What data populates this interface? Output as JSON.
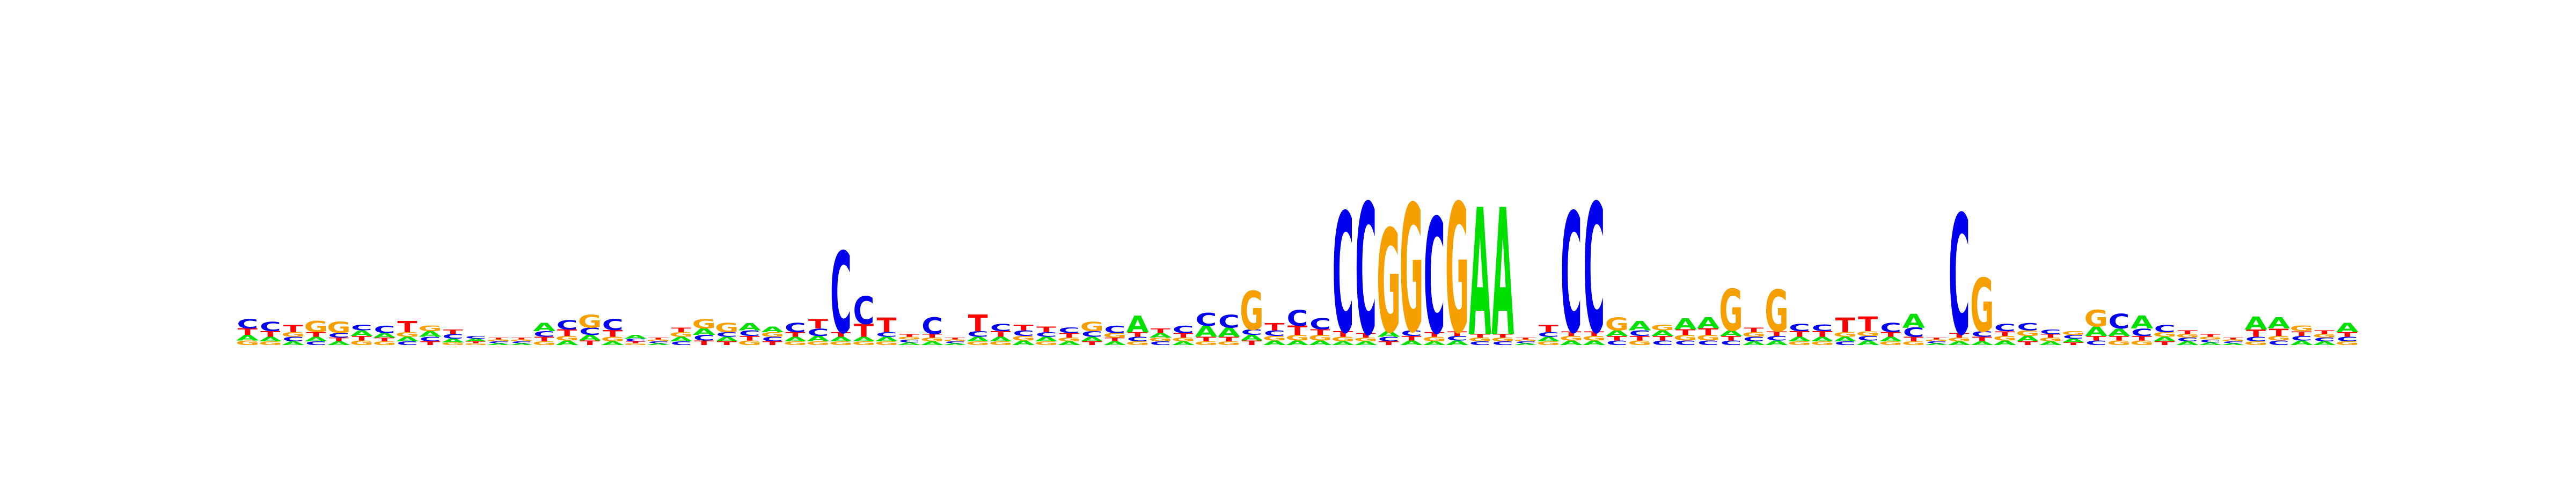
{
  "chart_data": {
    "type": "sequence-logo",
    "alphabet": [
      "A",
      "C",
      "G",
      "T"
    ],
    "colors": {
      "A": "#00e000",
      "C": "#0000ee",
      "G": "#f5a000",
      "T": "#ff0000"
    },
    "ylim": [
      0,
      2
    ],
    "columns": [
      {
        "A": 0.06,
        "C": 0.1,
        "G": 0.05,
        "T": 0.07
      },
      {
        "A": 0.05,
        "C": 0.1,
        "G": 0.04,
        "T": 0.06
      },
      {
        "A": 0.04,
        "C": 0.05,
        "G": 0.05,
        "T": 0.08
      },
      {
        "A": 0.05,
        "C": 0.04,
        "G": 0.12,
        "T": 0.05
      },
      {
        "A": 0.04,
        "C": 0.05,
        "G": 0.12,
        "T": 0.04
      },
      {
        "A": 0.06,
        "C": 0.06,
        "G": 0.05,
        "T": 0.05
      },
      {
        "A": 0.05,
        "C": 0.08,
        "G": 0.04,
        "T": 0.04
      },
      {
        "A": 0.05,
        "C": 0.04,
        "G": 0.05,
        "T": 0.12
      },
      {
        "A": 0.06,
        "C": 0.05,
        "G": 0.06,
        "T": 0.04
      },
      {
        "A": 0.04,
        "C": 0.05,
        "G": 0.03,
        "T": 0.05
      },
      {
        "A": 0.03,
        "C": 0.03,
        "G": 0.02,
        "T": 0.02
      },
      {
        "A": 0.02,
        "C": 0.02,
        "G": 0.02,
        "T": 0.02
      },
      {
        "A": 0.02,
        "C": 0.02,
        "G": 0.02,
        "T": 0.02
      },
      {
        "A": 0.09,
        "C": 0.06,
        "G": 0.04,
        "T": 0.05
      },
      {
        "A": 0.05,
        "C": 0.1,
        "G": 0.05,
        "T": 0.07
      },
      {
        "A": 0.06,
        "C": 0.08,
        "G": 0.14,
        "T": 0.05
      },
      {
        "A": 0.04,
        "C": 0.12,
        "G": 0.05,
        "T": 0.07
      },
      {
        "A": 0.04,
        "C": 0.03,
        "G": 0.02,
        "T": 0.02
      },
      {
        "A": 0.02,
        "C": 0.02,
        "G": 0.02,
        "T": 0.02
      },
      {
        "A": 0.05,
        "C": 0.04,
        "G": 0.05,
        "T": 0.05
      },
      {
        "A": 0.07,
        "C": 0.06,
        "G": 0.1,
        "T": 0.05
      },
      {
        "A": 0.05,
        "C": 0.05,
        "G": 0.1,
        "T": 0.04
      },
      {
        "A": 0.08,
        "C": 0.06,
        "G": 0.05,
        "T": 0.05
      },
      {
        "A": 0.06,
        "C": 0.05,
        "G": 0.05,
        "T": 0.04
      },
      {
        "A": 0.05,
        "C": 0.1,
        "G": 0.04,
        "T": 0.05
      },
      {
        "A": 0.06,
        "C": 0.08,
        "G": 0.04,
        "T": 0.1
      },
      {
        "A": 0.05,
        "C": 0.88,
        "G": 0.04,
        "T": 0.05
      },
      {
        "A": 0.05,
        "C": 0.3,
        "G": 0.04,
        "T": 0.14
      },
      {
        "A": 0.05,
        "C": 0.05,
        "G": 0.04,
        "T": 0.16
      },
      {
        "A": 0.03,
        "C": 0.03,
        "G": 0.03,
        "T": 0.03
      },
      {
        "A": 0.04,
        "C": 0.18,
        "G": 0.04,
        "T": 0.04
      },
      {
        "A": 0.02,
        "C": 0.02,
        "G": 0.02,
        "T": 0.02
      },
      {
        "A": 0.05,
        "C": 0.06,
        "G": 0.04,
        "T": 0.18
      },
      {
        "A": 0.05,
        "C": 0.08,
        "G": 0.04,
        "T": 0.06
      },
      {
        "A": 0.05,
        "C": 0.06,
        "G": 0.05,
        "T": 0.06
      },
      {
        "A": 0.05,
        "C": 0.05,
        "G": 0.04,
        "T": 0.06
      },
      {
        "A": 0.04,
        "C": 0.06,
        "G": 0.04,
        "T": 0.05
      },
      {
        "A": 0.05,
        "C": 0.06,
        "G": 0.1,
        "T": 0.04
      },
      {
        "A": 0.04,
        "C": 0.08,
        "G": 0.05,
        "T": 0.04
      },
      {
        "A": 0.18,
        "C": 0.05,
        "G": 0.04,
        "T": 0.05
      },
      {
        "A": 0.05,
        "C": 0.04,
        "G": 0.04,
        "T": 0.05
      },
      {
        "A": 0.04,
        "C": 0.08,
        "G": 0.04,
        "T": 0.05
      },
      {
        "A": 0.12,
        "C": 0.14,
        "G": 0.04,
        "T": 0.05
      },
      {
        "A": 0.1,
        "C": 0.14,
        "G": 0.04,
        "T": 0.05
      },
      {
        "A": 0.06,
        "C": 0.06,
        "G": 0.42,
        "T": 0.05
      },
      {
        "A": 0.05,
        "C": 0.06,
        "G": 0.05,
        "T": 0.08
      },
      {
        "A": 0.05,
        "C": 0.17,
        "G": 0.06,
        "T": 0.1
      },
      {
        "A": 0.05,
        "C": 0.12,
        "G": 0.06,
        "T": 0.06
      },
      {
        "A": 0.04,
        "C": 1.3,
        "G": 0.05,
        "T": 0.06
      },
      {
        "A": 0.04,
        "C": 1.42,
        "G": 0.04,
        "T": 0.05
      },
      {
        "A": 0.06,
        "C": 0.05,
        "G": 1.12,
        "T": 0.04
      },
      {
        "A": 0.05,
        "C": 0.06,
        "G": 1.38,
        "T": 0.05
      },
      {
        "A": 0.04,
        "C": 1.25,
        "G": 0.05,
        "T": 0.05
      },
      {
        "A": 0.05,
        "C": 0.05,
        "G": 1.4,
        "T": 0.05
      },
      {
        "A": 1.38,
        "C": 0.04,
        "G": 0.04,
        "T": 0.04
      },
      {
        "A": 1.38,
        "C": 0.04,
        "G": 0.04,
        "T": 0.04
      },
      {
        "A": 0.02,
        "C": 0.02,
        "G": 0.02,
        "T": 0.02
      },
      {
        "A": 0.05,
        "C": 0.05,
        "G": 0.04,
        "T": 0.08
      },
      {
        "A": 0.05,
        "C": 1.3,
        "G": 0.05,
        "T": 0.05
      },
      {
        "A": 0.05,
        "C": 1.4,
        "G": 0.05,
        "T": 0.05
      },
      {
        "A": 0.06,
        "C": 0.05,
        "G": 0.14,
        "T": 0.05
      },
      {
        "A": 0.1,
        "C": 0.06,
        "G": 0.05,
        "T": 0.05
      },
      {
        "A": 0.06,
        "C": 0.05,
        "G": 0.06,
        "T": 0.05
      },
      {
        "A": 0.12,
        "C": 0.05,
        "G": 0.06,
        "T": 0.06
      },
      {
        "A": 0.12,
        "C": 0.05,
        "G": 0.06,
        "T": 0.07
      },
      {
        "A": 0.06,
        "C": 0.05,
        "G": 0.45,
        "T": 0.05
      },
      {
        "A": 0.04,
        "C": 0.05,
        "G": 0.05,
        "T": 0.05
      },
      {
        "A": 0.05,
        "C": 0.05,
        "G": 0.45,
        "T": 0.05
      },
      {
        "A": 0.05,
        "C": 0.08,
        "G": 0.04,
        "T": 0.06
      },
      {
        "A": 0.05,
        "C": 0.07,
        "G": 0.04,
        "T": 0.06
      },
      {
        "A": 0.05,
        "C": 0.04,
        "G": 0.05,
        "T": 0.16
      },
      {
        "A": 0.05,
        "C": 0.05,
        "G": 0.05,
        "T": 0.16
      },
      {
        "A": 0.05,
        "C": 0.1,
        "G": 0.04,
        "T": 0.05
      },
      {
        "A": 0.15,
        "C": 0.1,
        "G": 0.04,
        "T": 0.05
      },
      {
        "A": 0.02,
        "C": 0.02,
        "G": 0.02,
        "T": 0.02
      },
      {
        "A": 0.04,
        "C": 1.3,
        "G": 0.04,
        "T": 0.05
      },
      {
        "A": 0.04,
        "C": 0.06,
        "G": 0.58,
        "T": 0.05
      },
      {
        "A": 0.05,
        "C": 0.08,
        "G": 0.05,
        "T": 0.05
      },
      {
        "A": 0.06,
        "C": 0.08,
        "G": 0.06,
        "T": 0.04
      },
      {
        "A": 0.04,
        "C": 0.05,
        "G": 0.04,
        "T": 0.04
      },
      {
        "A": 0.04,
        "C": 0.04,
        "G": 0.04,
        "T": 0.03
      },
      {
        "A": 0.1,
        "C": 0.05,
        "G": 0.18,
        "T": 0.05
      },
      {
        "A": 0.08,
        "C": 0.16,
        "G": 0.05,
        "T": 0.05
      },
      {
        "A": 0.14,
        "C": 0.08,
        "G": 0.05,
        "T": 0.05
      },
      {
        "A": 0.05,
        "C": 0.08,
        "G": 0.05,
        "T": 0.04
      },
      {
        "A": 0.04,
        "C": 0.04,
        "G": 0.04,
        "T": 0.04
      },
      {
        "A": 0.03,
        "C": 0.03,
        "G": 0.03,
        "T": 0.03
      },
      {
        "A": 0.02,
        "C": 0.02,
        "G": 0.02,
        "T": 0.02
      },
      {
        "A": 0.14,
        "C": 0.05,
        "G": 0.04,
        "T": 0.08
      },
      {
        "A": 0.12,
        "C": 0.05,
        "G": 0.05,
        "T": 0.08
      },
      {
        "A": 0.05,
        "C": 0.05,
        "G": 0.06,
        "T": 0.05
      },
      {
        "A": 0.04,
        "C": 0.04,
        "G": 0.04,
        "T": 0.04
      },
      {
        "A": 0.1,
        "C": 0.05,
        "G": 0.04,
        "T": 0.05
      }
    ]
  }
}
